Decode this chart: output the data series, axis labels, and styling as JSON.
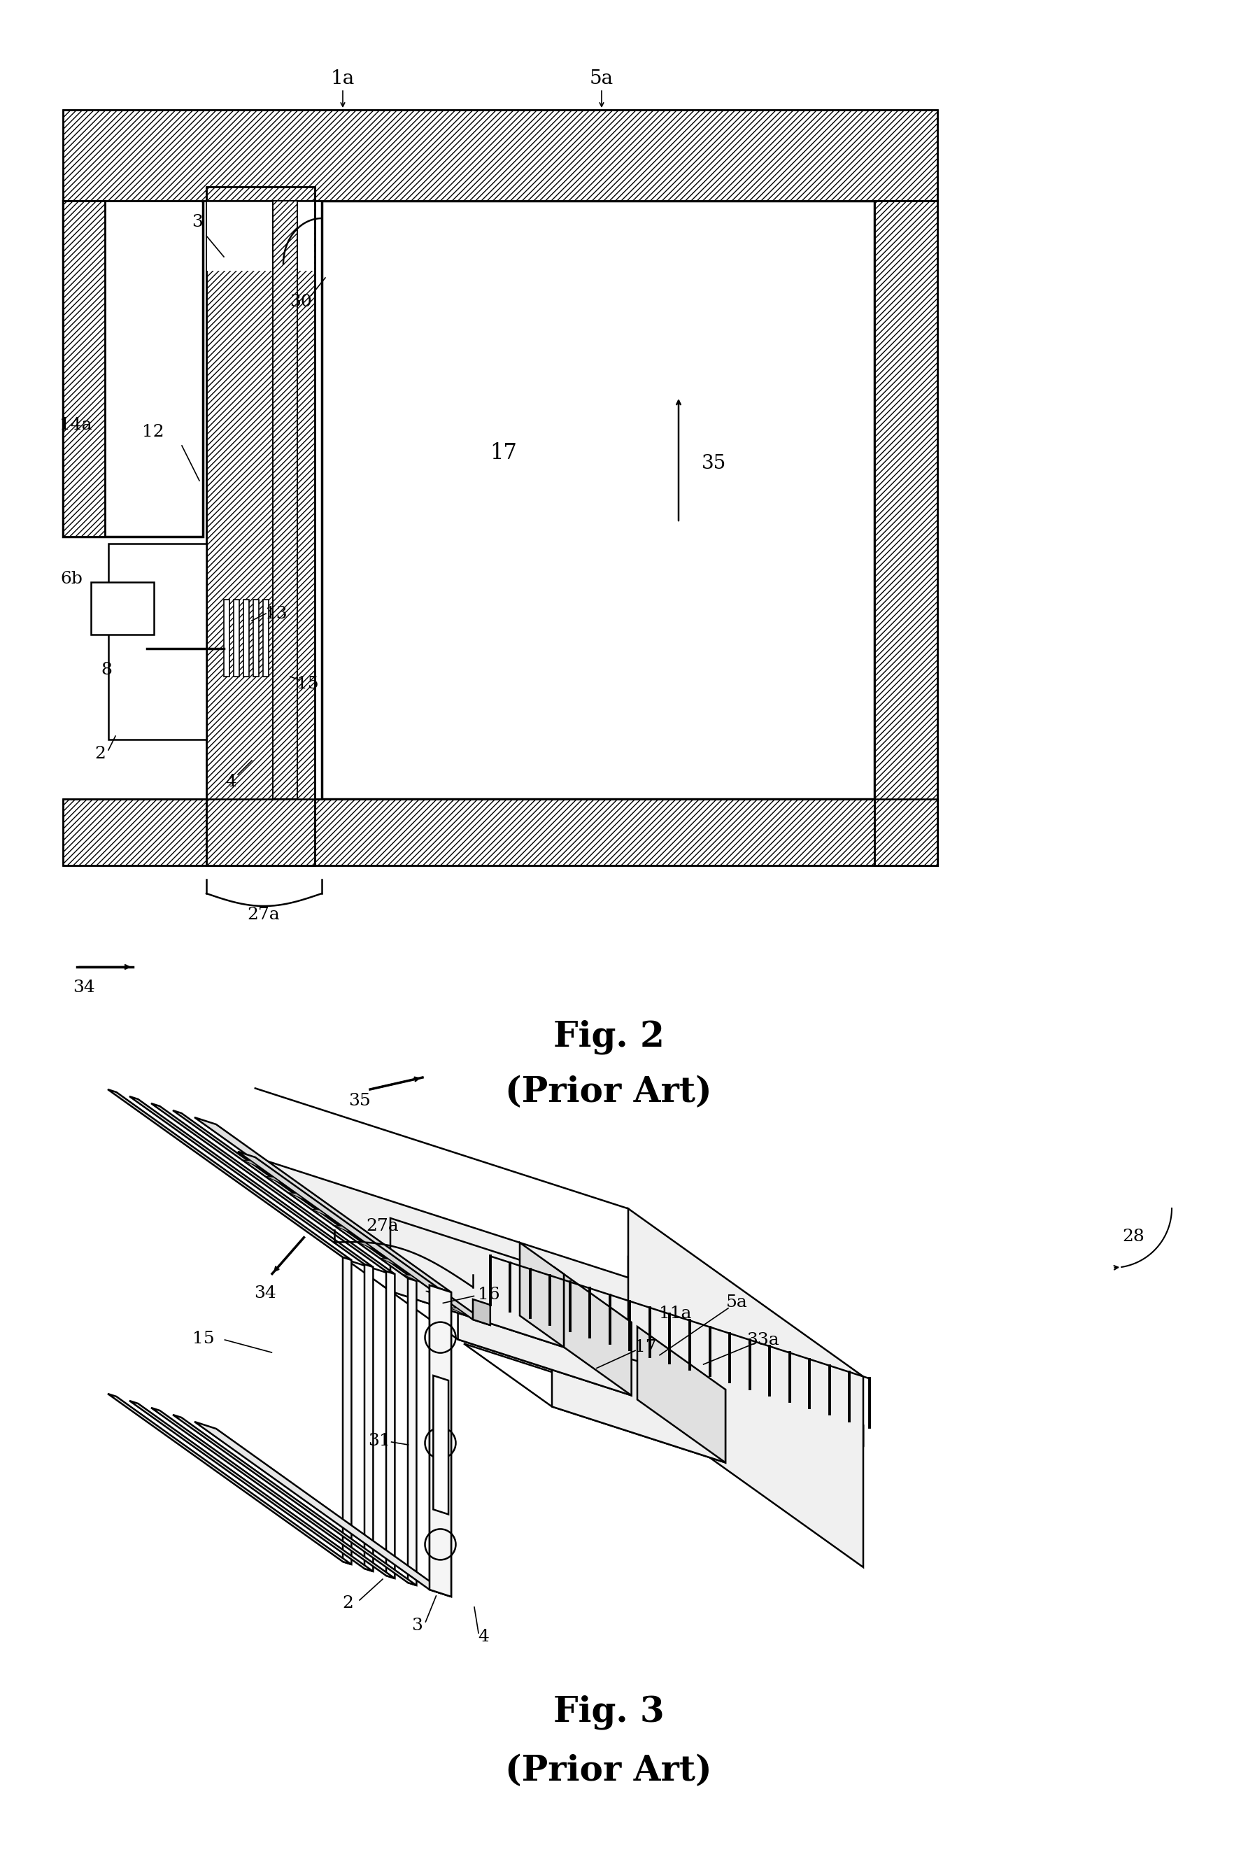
{
  "bg_color": "#ffffff",
  "line_color": "#000000",
  "fig2_title": "Fig. 2",
  "fig2_subtitle": "(Prior Art)",
  "fig3_title": "Fig. 3",
  "fig3_subtitle": "(Prior Art)",
  "lw_thick": 2.5,
  "lw_med": 1.8,
  "lw_thin": 1.2
}
